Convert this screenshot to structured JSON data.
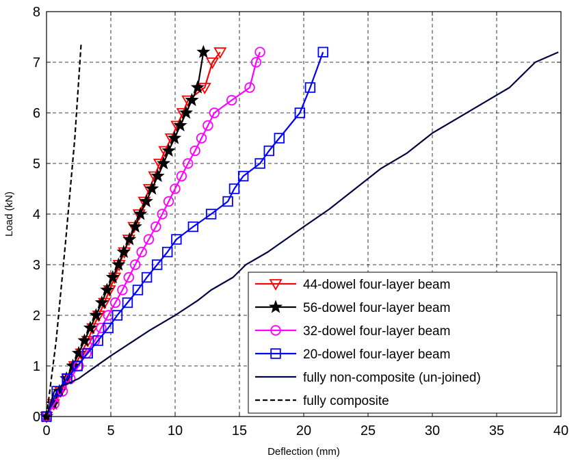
{
  "chart_data": {
    "type": "line",
    "title": "",
    "xlabel": "Deflection (mm)",
    "ylabel": "Load (kN)",
    "xlim": [
      0,
      40
    ],
    "ylim": [
      0,
      8
    ],
    "xticks": [
      0,
      5,
      10,
      15,
      20,
      25,
      30,
      35,
      40
    ],
    "yticks": [
      0,
      1,
      2,
      3,
      4,
      5,
      6,
      7,
      8
    ],
    "grid": true,
    "legend_position": "bottom-right",
    "series": [
      {
        "name": "44-dowel four-layer beam",
        "color": "#ff0000",
        "marker": "triangle-down",
        "line": "solid",
        "x": [
          0,
          0.55,
          1.1,
          1.65,
          2.2,
          2.7,
          3.2,
          3.6,
          4.05,
          4.5,
          4.9,
          5.3,
          5.65,
          6.05,
          6.4,
          6.8,
          7.2,
          7.6,
          8.0,
          8.4,
          8.8,
          9.2,
          9.7,
          10.15,
          10.6,
          11.0,
          12.3,
          12.9,
          13.5
        ],
        "y": [
          0,
          0.25,
          0.5,
          0.75,
          1.0,
          1.25,
          1.5,
          1.75,
          2.0,
          2.25,
          2.5,
          2.75,
          3.0,
          3.25,
          3.5,
          3.75,
          4.0,
          4.25,
          4.5,
          4.75,
          5.0,
          5.25,
          5.5,
          5.75,
          6.0,
          6.25,
          6.5,
          7.0,
          7.2
        ]
      },
      {
        "name": "56-dowel four-layer beam",
        "color": "#000000",
        "marker": "star",
        "line": "solid",
        "x": [
          0,
          0.5,
          1.0,
          1.55,
          2.05,
          2.5,
          2.95,
          3.4,
          3.85,
          4.3,
          4.7,
          5.15,
          5.6,
          6.0,
          6.45,
          6.9,
          7.3,
          7.75,
          8.2,
          8.65,
          9.1,
          9.5,
          9.95,
          10.4,
          10.85,
          11.3,
          11.75,
          12.2
        ],
        "y": [
          0,
          0.25,
          0.5,
          0.75,
          1.0,
          1.25,
          1.5,
          1.75,
          2.0,
          2.25,
          2.5,
          2.75,
          3.0,
          3.25,
          3.5,
          3.75,
          4.0,
          4.25,
          4.5,
          4.75,
          5.0,
          5.25,
          5.5,
          5.75,
          6.0,
          6.25,
          6.5,
          7.2
        ]
      },
      {
        "name": "32-dowel four-layer beam",
        "color": "#ff00ff",
        "marker": "circle",
        "line": "solid",
        "x": [
          0,
          0.6,
          1.25,
          1.85,
          2.5,
          3.1,
          3.75,
          4.25,
          4.8,
          5.35,
          5.9,
          6.4,
          6.9,
          7.4,
          7.95,
          8.5,
          9.0,
          9.5,
          10.0,
          10.5,
          11.0,
          11.55,
          12.05,
          12.55,
          13.05,
          14.4,
          15.8,
          16.3,
          16.6
        ],
        "y": [
          0,
          0.25,
          0.5,
          0.75,
          1.0,
          1.25,
          1.5,
          1.75,
          2.0,
          2.25,
          2.5,
          2.75,
          3.0,
          3.25,
          3.5,
          3.75,
          4.0,
          4.25,
          4.5,
          4.75,
          5.0,
          5.25,
          5.5,
          5.75,
          6.0,
          6.25,
          6.5,
          7.0,
          7.2
        ]
      },
      {
        "name": "20-dowel four-layer beam",
        "color": "#0000ff",
        "marker": "square",
        "line": "solid",
        "x": [
          0,
          0.8,
          1.6,
          2.4,
          3.2,
          4.0,
          4.8,
          5.5,
          6.3,
          7.1,
          7.8,
          8.6,
          9.4,
          10.1,
          11.4,
          12.8,
          14.1,
          14.6,
          15.3,
          16.6,
          17.3,
          18.1,
          19.7,
          20.5,
          21.5
        ],
        "y": [
          0,
          0.5,
          0.75,
          1.0,
          1.25,
          1.5,
          1.75,
          2.0,
          2.25,
          2.5,
          2.75,
          3.0,
          3.25,
          3.5,
          3.75,
          4.0,
          4.25,
          4.5,
          4.75,
          5.0,
          5.25,
          5.5,
          6.0,
          6.5,
          7.2
        ]
      },
      {
        "name": "fully non-composite (un-joined)",
        "color": "#000040",
        "marker": "none",
        "line": "solid",
        "x": [
          0,
          0.6,
          1.2,
          2.5,
          3.6,
          5.0,
          6.5,
          8.0,
          10.0,
          11.8,
          12.8,
          14.5,
          15.5,
          17.2,
          20.0,
          22.0,
          24.0,
          26.0,
          28.0,
          30.0,
          32.0,
          34.0,
          36.0,
          38.0,
          39.8
        ],
        "y": [
          0,
          0.5,
          0.6,
          0.75,
          0.95,
          1.2,
          1.45,
          1.7,
          2.0,
          2.3,
          2.5,
          2.75,
          3.0,
          3.25,
          3.75,
          4.1,
          4.5,
          4.9,
          5.2,
          5.6,
          5.9,
          6.2,
          6.5,
          7.0,
          7.2
        ]
      },
      {
        "name": "fully composite",
        "color": "#000000",
        "marker": "none",
        "line": "dashed",
        "x": [
          0,
          0.75,
          1.5,
          2.2,
          2.7
        ],
        "y": [
          0,
          1.5,
          3.5,
          5.5,
          7.4
        ]
      }
    ]
  }
}
